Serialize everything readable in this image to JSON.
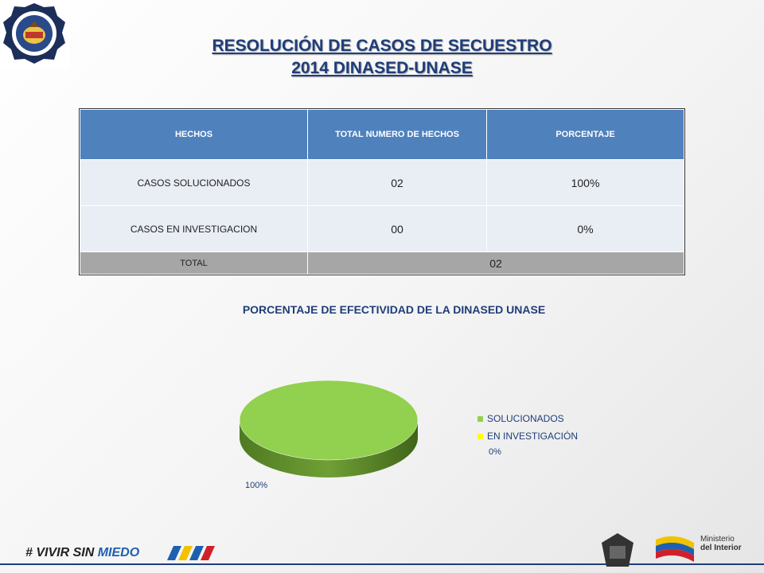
{
  "title": {
    "line1": "RESOLUCIÓN DE CASOS DE SECUESTRO",
    "line2": "2014 DINASED-UNASE"
  },
  "table": {
    "headers": [
      "HECHOS",
      "TOTAL NUMERO DE HECHOS",
      "PORCENTAJE"
    ],
    "rows": [
      {
        "label": "CASOS SOLUCIONADOS",
        "total": "02",
        "pct": "100%"
      },
      {
        "label": "CASOS EN INVESTIGACION",
        "total": "00",
        "pct": "0%"
      }
    ],
    "total_row": {
      "label": "TOTAL",
      "total": "02"
    }
  },
  "chart_data": {
    "type": "pie",
    "title": "PORCENTAJE DE EFECTIVIDAD DE LA DINASED UNASE",
    "categories": [
      "SOLUCIONADOS",
      "EN INVESTIGACIÓN"
    ],
    "values": [
      100,
      0
    ],
    "data_labels": [
      "100%",
      "0%"
    ],
    "colors": [
      "#92d050",
      "#ffff00"
    ],
    "legend_position": "right"
  },
  "footer": {
    "slogan_part1": "# VIVIR SIN",
    "slogan_part2": "MIEDO",
    "ministerio_line1": "Ministerio",
    "ministerio_line2": "del Interior"
  }
}
